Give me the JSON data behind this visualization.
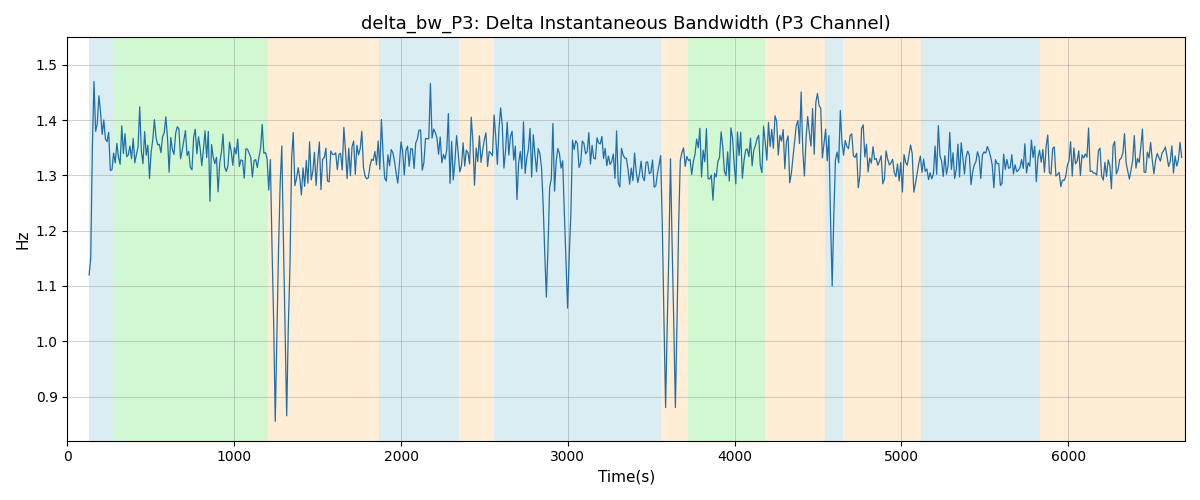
{
  "title": "delta_bw_P3: Delta Instantaneous Bandwidth (P3 Channel)",
  "xlabel": "Time(s)",
  "ylabel": "Hz",
  "xlim": [
    0,
    6700
  ],
  "ylim": [
    0.82,
    1.55
  ],
  "grid": true,
  "line_color": "#1f6fad",
  "line_width": 0.9,
  "background_color": "#ffffff",
  "bands": [
    {
      "xmin": 130,
      "xmax": 280,
      "color": "#add8e6",
      "alpha": 0.45
    },
    {
      "xmin": 280,
      "xmax": 1200,
      "color": "#90ee90",
      "alpha": 0.4
    },
    {
      "xmin": 1200,
      "xmax": 1870,
      "color": "#ffdead",
      "alpha": 0.5
    },
    {
      "xmin": 1870,
      "xmax": 2350,
      "color": "#add8e6",
      "alpha": 0.45
    },
    {
      "xmin": 2350,
      "xmax": 2560,
      "color": "#ffdead",
      "alpha": 0.5
    },
    {
      "xmin": 2560,
      "xmax": 3560,
      "color": "#add8e6",
      "alpha": 0.45
    },
    {
      "xmin": 3560,
      "xmax": 3720,
      "color": "#ffdead",
      "alpha": 0.5
    },
    {
      "xmin": 3720,
      "xmax": 4180,
      "color": "#90ee90",
      "alpha": 0.4
    },
    {
      "xmin": 4180,
      "xmax": 4540,
      "color": "#ffdead",
      "alpha": 0.5
    },
    {
      "xmin": 4540,
      "xmax": 4650,
      "color": "#add8e6",
      "alpha": 0.45
    },
    {
      "xmin": 4650,
      "xmax": 5120,
      "color": "#ffdead",
      "alpha": 0.5
    },
    {
      "xmin": 5120,
      "xmax": 5830,
      "color": "#add8e6",
      "alpha": 0.45
    },
    {
      "xmin": 5830,
      "xmax": 6700,
      "color": "#ffdead",
      "alpha": 0.5
    }
  ],
  "seed": 42,
  "n_points": 670,
  "base_value": 1.335,
  "noise_std": 0.03,
  "title_fontsize": 13,
  "tick_fontsize": 10,
  "label_fontsize": 11
}
